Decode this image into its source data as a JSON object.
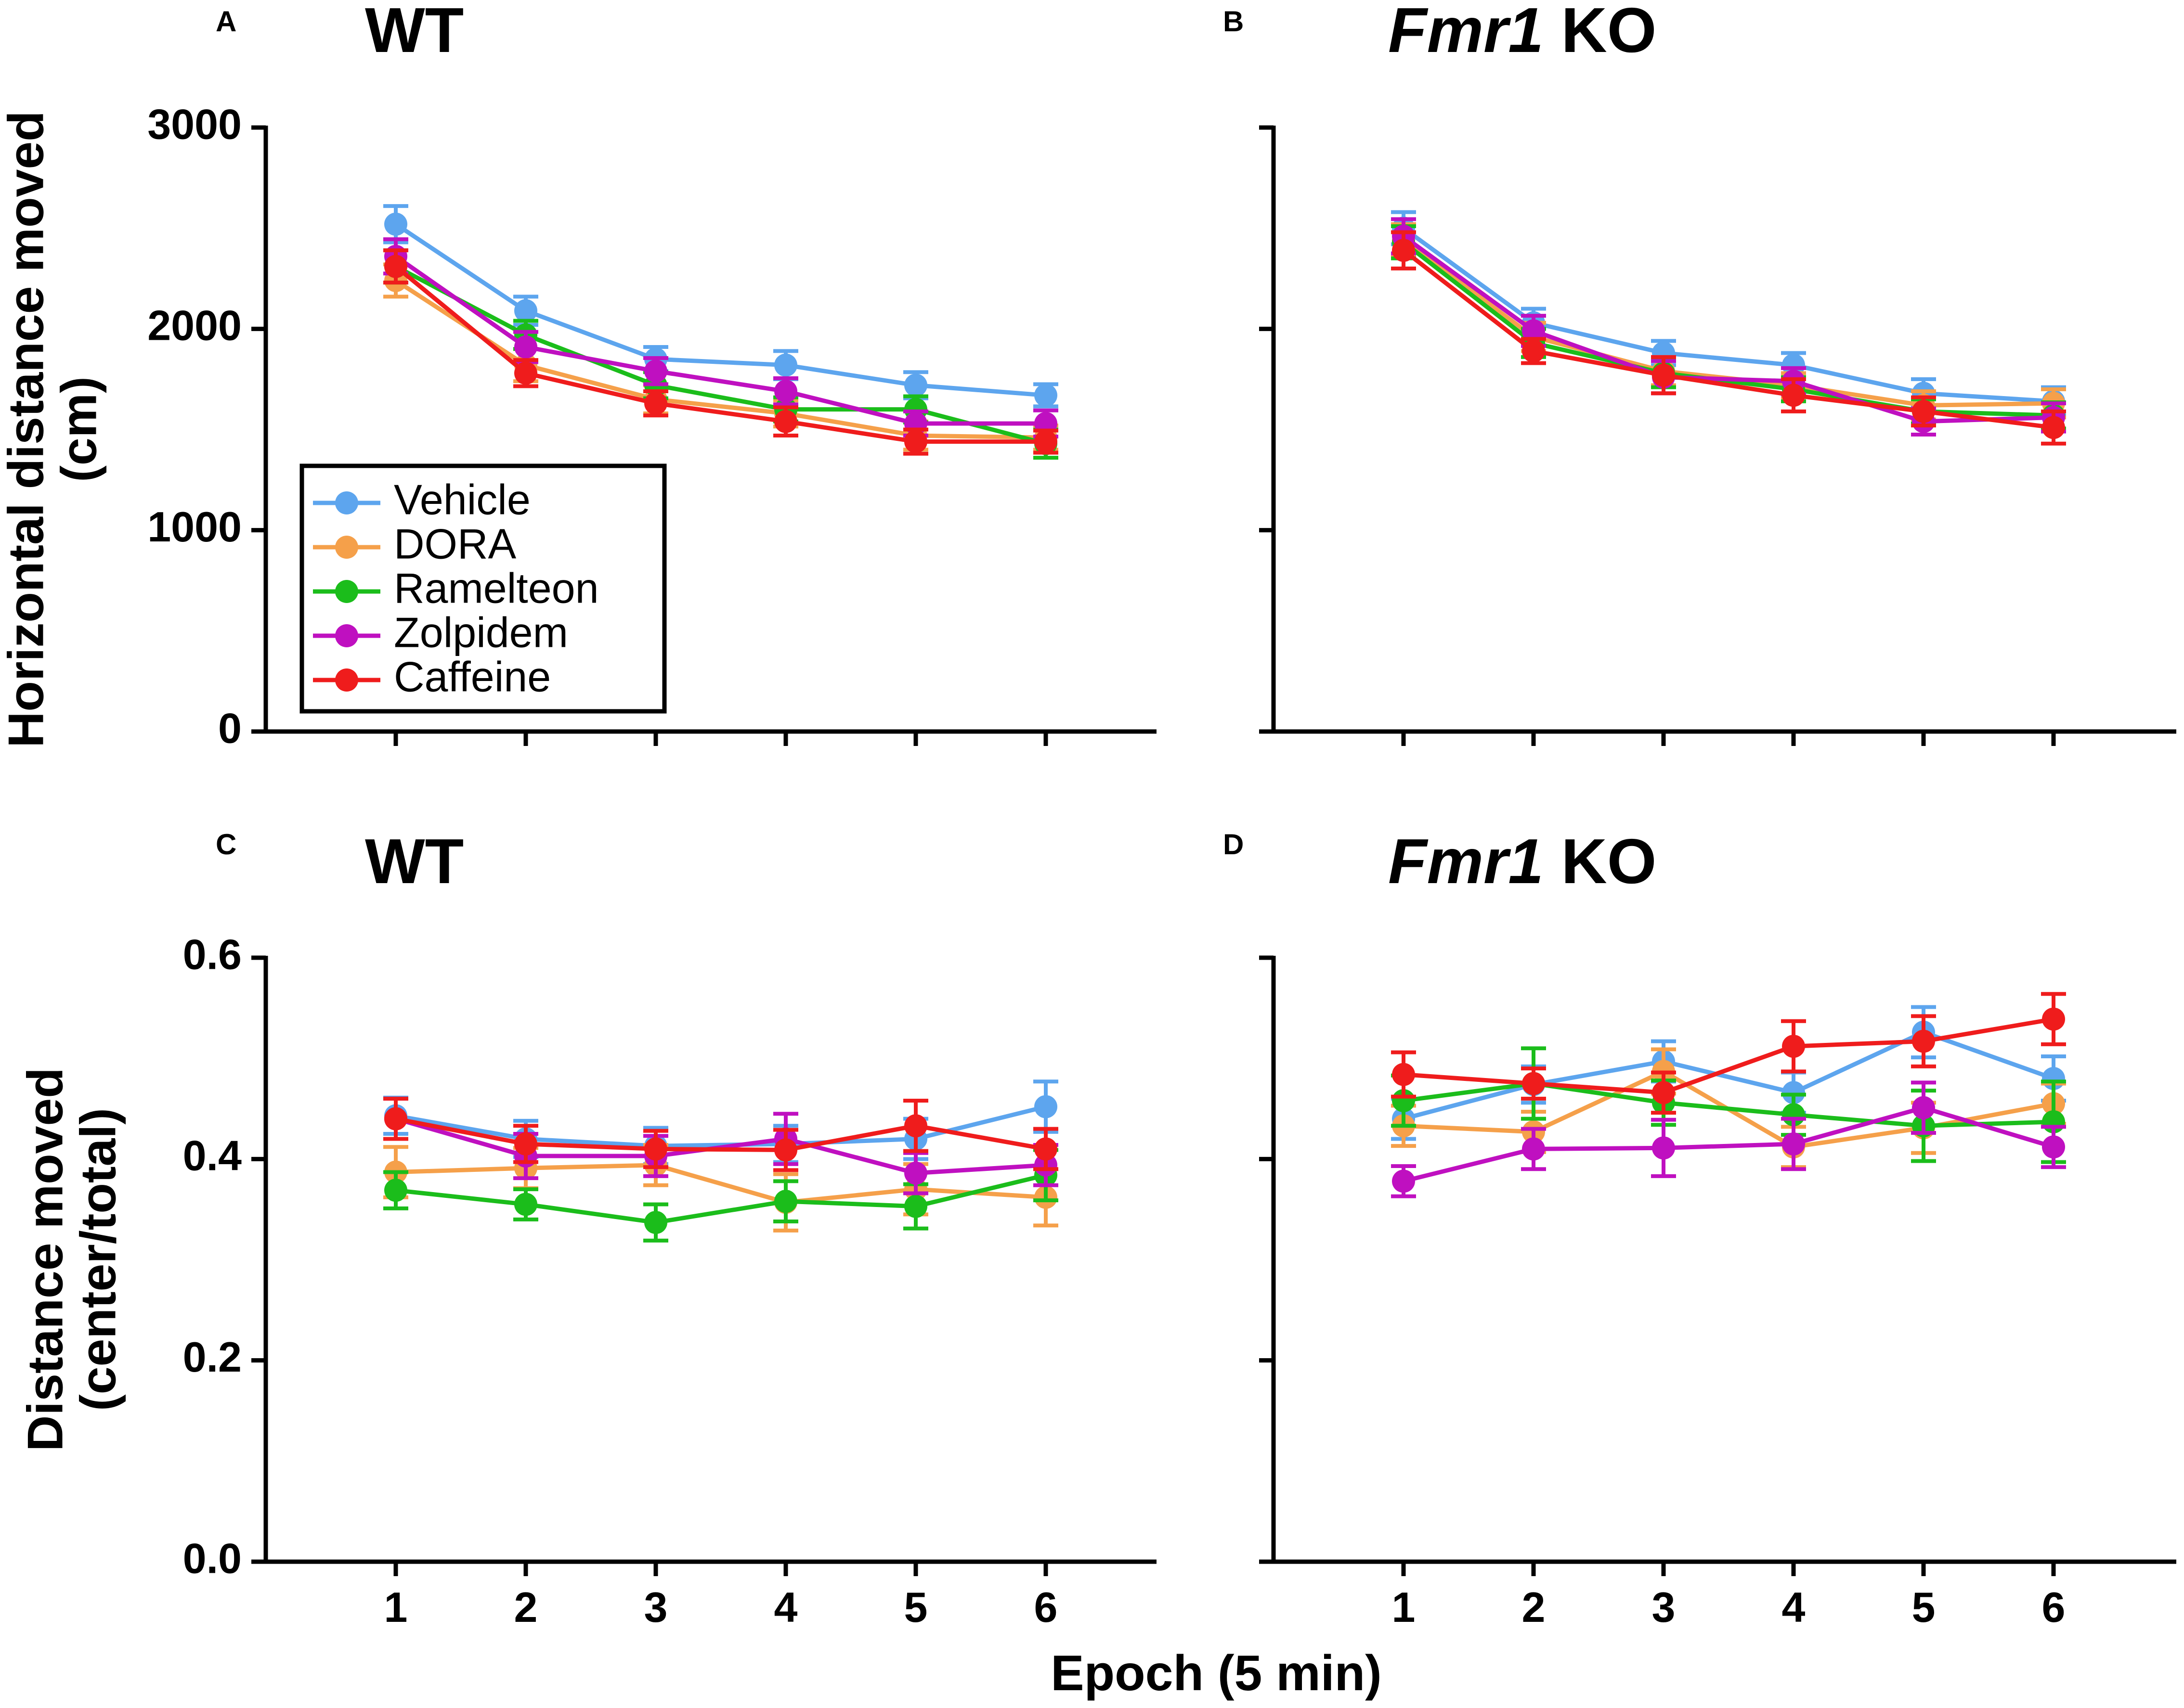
{
  "figure": {
    "x_axis_title": "Epoch (5 min)",
    "legend": [
      {
        "name": "Vehicle",
        "color": "#5da5ee"
      },
      {
        "name": "DORA",
        "color": "#f5a04a"
      },
      {
        "name": "Ramelteon",
        "color": "#1bbd1b"
      },
      {
        "name": "Zolpidem",
        "color": "#bf10c0"
      },
      {
        "name": "Caffeine",
        "color": "#ef1c1c"
      }
    ]
  },
  "chart_data": [
    {
      "panel": "A",
      "title": "WT",
      "title_italic": "",
      "type": "line",
      "ylabel_lines": [
        "Horizontal distance moved",
        "(cm)"
      ],
      "xlim": [
        0,
        7
      ],
      "ylim": [
        0,
        3000
      ],
      "yticks": [
        "0",
        "1000",
        "2000",
        "3000"
      ],
      "x": [
        1,
        2,
        3,
        4,
        5,
        6
      ],
      "show_legend": true,
      "series": [
        {
          "name": "Vehicle",
          "values": [
            2520,
            2090,
            1850,
            1820,
            1720,
            1670
          ],
          "err": [
            90,
            70,
            60,
            70,
            65,
            55
          ]
        },
        {
          "name": "DORA",
          "values": [
            2240,
            1820,
            1650,
            1580,
            1470,
            1460
          ],
          "err": [
            80,
            80,
            70,
            65,
            70,
            60
          ]
        },
        {
          "name": "Ramelteon",
          "values": [
            2310,
            1970,
            1720,
            1600,
            1600,
            1430
          ],
          "err": [
            80,
            70,
            65,
            60,
            65,
            70
          ]
        },
        {
          "name": "Zolpidem",
          "values": [
            2360,
            1910,
            1790,
            1690,
            1530,
            1530
          ],
          "err": [
            85,
            75,
            65,
            65,
            60,
            65
          ]
        },
        {
          "name": "Caffeine",
          "values": [
            2310,
            1780,
            1630,
            1540,
            1440,
            1440
          ],
          "err": [
            80,
            65,
            60,
            70,
            60,
            55
          ]
        }
      ]
    },
    {
      "panel": "B",
      "title": "KO",
      "title_italic": "Fmr1",
      "type": "line",
      "ylabel_lines": [],
      "xlim": [
        0,
        7
      ],
      "ylim": [
        0,
        3000
      ],
      "yticks": [
        "",
        "",
        "",
        ""
      ],
      "x": [
        1,
        2,
        3,
        4,
        5,
        6
      ],
      "show_legend": false,
      "series": [
        {
          "name": "Vehicle",
          "values": [
            2500,
            2030,
            1880,
            1820,
            1680,
            1640
          ],
          "err": [
            80,
            70,
            60,
            60,
            70,
            70
          ]
        },
        {
          "name": "DORA",
          "values": [
            2440,
            1960,
            1790,
            1720,
            1620,
            1630
          ],
          "err": [
            80,
            70,
            70,
            60,
            70,
            70
          ]
        },
        {
          "name": "Ramelteon",
          "values": [
            2430,
            1930,
            1780,
            1700,
            1590,
            1570
          ],
          "err": [
            80,
            70,
            70,
            60,
            60,
            65
          ]
        },
        {
          "name": "Zolpidem",
          "values": [
            2460,
            1990,
            1760,
            1740,
            1540,
            1560
          ],
          "err": [
            85,
            75,
            80,
            65,
            65,
            70
          ]
        },
        {
          "name": "Caffeine",
          "values": [
            2390,
            1890,
            1770,
            1670,
            1590,
            1510
          ],
          "err": [
            90,
            60,
            90,
            80,
            70,
            80
          ]
        }
      ]
    },
    {
      "panel": "C",
      "title": "WT",
      "title_italic": "",
      "type": "line",
      "ylabel_lines": [
        "Distance moved",
        "(center/total)"
      ],
      "xlim": [
        0,
        7
      ],
      "ylim": [
        0,
        0.6
      ],
      "yticks": [
        "0.0",
        "0.2",
        "0.4",
        "0.6"
      ],
      "x": [
        1,
        2,
        3,
        4,
        5,
        6
      ],
      "show_legend": false,
      "series": [
        {
          "name": "Vehicle",
          "values": [
            0.443,
            0.42,
            0.413,
            0.415,
            0.42,
            0.452
          ],
          "err": [
            0.018,
            0.018,
            0.018,
            0.018,
            0.02,
            0.025
          ]
        },
        {
          "name": "DORA",
          "values": [
            0.387,
            0.391,
            0.394,
            0.357,
            0.37,
            0.362
          ],
          "err": [
            0.025,
            0.02,
            0.02,
            0.028,
            0.025,
            0.028
          ]
        },
        {
          "name": "Ramelteon",
          "values": [
            0.369,
            0.355,
            0.337,
            0.358,
            0.353,
            0.384
          ],
          "err": [
            0.018,
            0.015,
            0.018,
            0.02,
            0.022,
            0.025
          ]
        },
        {
          "name": "Zolpidem",
          "values": [
            0.44,
            0.403,
            0.403,
            0.42,
            0.386,
            0.394
          ],
          "err": [
            0.02,
            0.022,
            0.02,
            0.025,
            0.02,
            0.02
          ]
        },
        {
          "name": "Caffeine",
          "values": [
            0.44,
            0.415,
            0.41,
            0.409,
            0.433,
            0.41
          ],
          "err": [
            0.02,
            0.018,
            0.018,
            0.02,
            0.025,
            0.02
          ]
        }
      ]
    },
    {
      "panel": "D",
      "title": "KO",
      "title_italic": "Fmr1",
      "type": "line",
      "ylabel_lines": [],
      "xlim": [
        0,
        7
      ],
      "ylim": [
        0,
        0.6
      ],
      "yticks": [
        "",
        "",
        "",
        ""
      ],
      "x": [
        1,
        2,
        3,
        4,
        5,
        6
      ],
      "show_legend": false,
      "series": [
        {
          "name": "Vehicle",
          "values": [
            0.44,
            0.474,
            0.497,
            0.466,
            0.526,
            0.48
          ],
          "err": [
            0.02,
            0.018,
            0.02,
            0.02,
            0.025,
            0.022
          ]
        },
        {
          "name": "DORA",
          "values": [
            0.433,
            0.427,
            0.487,
            0.412,
            0.431,
            0.455
          ],
          "err": [
            0.02,
            0.02,
            0.022,
            0.02,
            0.025,
            0.02
          ]
        },
        {
          "name": "Ramelteon",
          "values": [
            0.458,
            0.475,
            0.456,
            0.444,
            0.433,
            0.437
          ],
          "err": [
            0.025,
            0.035,
            0.022,
            0.02,
            0.035,
            0.04
          ]
        },
        {
          "name": "Zolpidem",
          "values": [
            0.378,
            0.41,
            0.411,
            0.415,
            0.451,
            0.412
          ],
          "err": [
            0.015,
            0.02,
            0.028,
            0.025,
            0.025,
            0.02
          ]
        },
        {
          "name": "Caffeine",
          "values": [
            0.484,
            0.475,
            0.466,
            0.512,
            0.517,
            0.539
          ],
          "err": [
            0.022,
            0.015,
            0.02,
            0.025,
            0.025,
            0.025
          ]
        }
      ]
    }
  ]
}
